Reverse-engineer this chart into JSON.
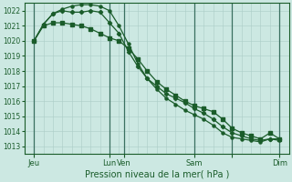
{
  "title": "Pression niveau de la mer( hPa )",
  "bg_color": "#cce8e2",
  "grid_color": "#aacdc6",
  "line_color": "#1a5c2a",
  "thick_line_color": "#3a7060",
  "ylim": [
    1012.5,
    1022.5
  ],
  "yticks": [
    1013,
    1014,
    1015,
    1016,
    1017,
    1018,
    1019,
    1020,
    1021,
    1022
  ],
  "xlim": [
    0,
    112
  ],
  "xtick_positions": [
    4,
    36,
    42,
    72,
    88,
    108
  ],
  "xtick_labels": [
    "Jeu",
    "Lun",
    "Ven",
    "Sam",
    "",
    "Dim"
  ],
  "vline_positions": [
    4,
    36,
    42,
    72,
    88,
    108
  ],
  "minor_grid_step": 4,
  "series1_x": [
    4,
    8,
    12,
    16,
    20,
    24,
    28,
    32,
    36,
    40,
    44,
    48,
    52,
    56,
    60,
    64,
    68,
    72,
    76,
    80,
    84,
    88,
    92,
    96,
    100,
    104,
    108
  ],
  "series1_y": [
    1020.0,
    1021.0,
    1021.2,
    1021.2,
    1021.1,
    1021.0,
    1020.8,
    1020.5,
    1020.2,
    1020.0,
    1019.5,
    1018.8,
    1018.0,
    1017.3,
    1016.8,
    1016.4,
    1016.0,
    1015.7,
    1015.5,
    1015.3,
    1014.8,
    1014.2,
    1013.9,
    1013.7,
    1013.5,
    1013.9,
    1013.5
  ],
  "series2_x": [
    4,
    8,
    12,
    16,
    20,
    24,
    28,
    32,
    36,
    40,
    44,
    48,
    52,
    56,
    60,
    64,
    68,
    72,
    76,
    80,
    84,
    88,
    92,
    96,
    100,
    104,
    108
  ],
  "series2_y": [
    1020.0,
    1021.1,
    1021.8,
    1022.0,
    1021.9,
    1021.9,
    1022.0,
    1021.9,
    1021.2,
    1020.5,
    1019.3,
    1018.3,
    1017.5,
    1017.0,
    1016.5,
    1016.2,
    1015.9,
    1015.5,
    1015.2,
    1014.8,
    1014.3,
    1013.9,
    1013.7,
    1013.5,
    1013.4,
    1013.5,
    1013.5
  ],
  "series3_x": [
    4,
    8,
    12,
    16,
    20,
    24,
    28,
    32,
    36,
    40,
    44,
    48,
    52,
    56,
    60,
    64,
    68,
    72,
    76,
    80,
    84,
    88,
    92,
    96,
    100,
    104,
    108
  ],
  "series3_y": [
    1020.0,
    1021.1,
    1021.8,
    1022.1,
    1022.3,
    1022.4,
    1022.4,
    1022.3,
    1022.0,
    1021.0,
    1019.8,
    1018.5,
    1017.5,
    1016.8,
    1016.2,
    1015.8,
    1015.4,
    1015.1,
    1014.8,
    1014.4,
    1013.9,
    1013.6,
    1013.5,
    1013.4,
    1013.3,
    1013.5,
    1013.4
  ]
}
